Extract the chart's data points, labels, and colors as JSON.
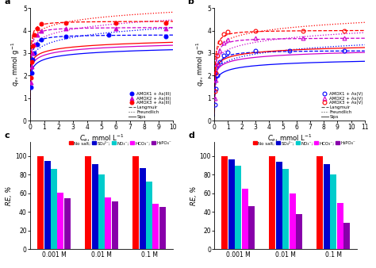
{
  "panel_a": {
    "title": "a",
    "xlim": [
      0,
      10
    ],
    "ylim": [
      0,
      5
    ],
    "xticks": [
      0,
      1,
      2,
      3,
      4,
      5,
      6,
      7,
      8,
      9,
      10
    ],
    "yticks": [
      0,
      1,
      2,
      3,
      4,
      5
    ],
    "data_points": {
      "AMOX1": {
        "x": [
          0.05,
          0.1,
          0.18,
          0.28,
          0.5,
          0.8,
          2.5,
          5.5,
          9.5
        ],
        "y": [
          1.5,
          2.1,
          2.7,
          3.0,
          3.4,
          3.6,
          3.75,
          3.82,
          3.75
        ],
        "color": "#0000ff",
        "marker": "o",
        "open": false
      },
      "AMOX2": {
        "x": [
          0.05,
          0.1,
          0.18,
          0.28,
          0.5,
          0.8,
          2.5,
          6.0,
          9.5
        ],
        "y": [
          1.7,
          2.4,
          3.0,
          3.4,
          3.8,
          4.0,
          4.1,
          4.1,
          4.1
        ],
        "color": "#cc00cc",
        "marker": "^",
        "open": false
      },
      "AMOX3": {
        "x": [
          0.05,
          0.1,
          0.18,
          0.28,
          0.5,
          0.8,
          2.5,
          6.0,
          9.5
        ],
        "y": [
          1.9,
          2.6,
          3.3,
          3.8,
          4.1,
          4.3,
          4.35,
          4.35,
          4.35
        ],
        "color": "#ff0000",
        "marker": "o",
        "open": false
      }
    },
    "sips": {
      "AMOX1": {
        "qmax": 3.82,
        "KS": 25.0,
        "n": 0.28
      },
      "AMOX2": {
        "qmax": 4.15,
        "KS": 30.0,
        "n": 0.25
      },
      "AMOX3": {
        "qmax": 4.42,
        "KS": 38.0,
        "n": 0.22
      }
    },
    "langmuir": {
      "AMOX1": {
        "qmax": 3.82,
        "KL": 20.0
      },
      "AMOX2": {
        "qmax": 4.15,
        "KL": 25.0
      },
      "AMOX3": {
        "qmax": 4.42,
        "KL": 32.0
      }
    },
    "freundlich": {
      "AMOX1": {
        "KF": 3.35,
        "n": 0.09
      },
      "AMOX2": {
        "KF": 3.72,
        "n": 0.08
      },
      "AMOX3": {
        "KF": 4.1,
        "n": 0.07
      }
    },
    "colors": [
      "#0000ff",
      "#cc00cc",
      "#ff0000"
    ],
    "legend_labels": [
      "AMOX1 + As(III)",
      "AMOX2 + As(III)",
      "AMOX3 + As(III)",
      "Langmuir",
      "Freundlich",
      "Sips"
    ]
  },
  "panel_b": {
    "title": "b",
    "xlim": [
      0,
      11
    ],
    "ylim": [
      0,
      5
    ],
    "xticks": [
      0,
      1,
      2,
      3,
      4,
      5,
      6,
      7,
      8,
      9,
      10,
      11
    ],
    "yticks": [
      0,
      1,
      2,
      3,
      4,
      5
    ],
    "data_points": {
      "AMOX1": {
        "x": [
          0.05,
          0.12,
          0.22,
          0.4,
          0.7,
          1.0,
          3.0,
          5.5,
          9.5
        ],
        "y": [
          0.7,
          1.4,
          2.0,
          2.6,
          2.9,
          3.05,
          3.1,
          3.1,
          3.1
        ],
        "color": "#0000ff",
        "marker": "o",
        "open": true
      },
      "AMOX2": {
        "x": [
          0.05,
          0.12,
          0.22,
          0.4,
          0.7,
          1.0,
          3.0,
          6.5,
          9.5
        ],
        "y": [
          1.0,
          1.8,
          2.5,
          3.1,
          3.45,
          3.6,
          3.65,
          3.65,
          3.65
        ],
        "color": "#cc00cc",
        "marker": "^",
        "open": true
      },
      "AMOX3": {
        "x": [
          0.05,
          0.12,
          0.22,
          0.4,
          0.7,
          1.0,
          3.0,
          6.5,
          9.5
        ],
        "y": [
          1.3,
          2.1,
          2.9,
          3.5,
          3.85,
          3.95,
          4.0,
          4.0,
          4.0
        ],
        "color": "#ff0000",
        "marker": "o",
        "open": true
      }
    },
    "sips": {
      "AMOX1": {
        "qmax": 3.12,
        "KS": 18.0,
        "n": 0.32
      },
      "AMOX2": {
        "qmax": 3.68,
        "KS": 22.0,
        "n": 0.28
      },
      "AMOX3": {
        "qmax": 4.02,
        "KS": 28.0,
        "n": 0.25
      }
    },
    "langmuir": {
      "AMOX1": {
        "qmax": 3.12,
        "KL": 12.0
      },
      "AMOX2": {
        "qmax": 3.68,
        "KL": 16.0
      },
      "AMOX3": {
        "qmax": 4.02,
        "KL": 20.0
      }
    },
    "freundlich": {
      "AMOX1": {
        "KF": 2.65,
        "n": 0.1
      },
      "AMOX2": {
        "KF": 3.15,
        "n": 0.09
      },
      "AMOX3": {
        "KF": 3.6,
        "n": 0.08
      }
    },
    "colors": [
      "#0000ff",
      "#cc00cc",
      "#ff0000"
    ],
    "legend_labels": [
      "AMOX1 + As(V)",
      "AMOX2 + As(V)",
      "AMOX3 + As(V)",
      "Langmuir",
      "Freundlich",
      "Sips"
    ]
  },
  "panel_c": {
    "title": "c",
    "ylabel": "RE, %",
    "categories": [
      "0.001 M",
      "0.01 M",
      "0.1 M"
    ],
    "bar_labels": [
      "No salt;",
      "SO₄²⁻;",
      "NO₃⁻;",
      "HCO₃⁻;",
      "H₂PO₄⁻"
    ],
    "bar_colors": [
      "#ff0000",
      "#0000cc",
      "#00cccc",
      "#ff00ff",
      "#8800aa"
    ],
    "values": [
      [
        100,
        95,
        86,
        61,
        55
      ],
      [
        100,
        91,
        80,
        56,
        51
      ],
      [
        100,
        87,
        73,
        49,
        45
      ]
    ],
    "ylim": [
      0,
      115
    ],
    "yticks": [
      0,
      20,
      40,
      60,
      80,
      100
    ]
  },
  "panel_d": {
    "title": "d",
    "ylabel": "RE, %",
    "categories": [
      "0.001 M",
      "0.01 M",
      "0.1 M"
    ],
    "bar_labels": [
      "No salt;",
      "SO₄²⁻;",
      "NO₃⁻;",
      "HCO₃⁻;",
      "H₂PO₄⁻"
    ],
    "bar_colors": [
      "#ff0000",
      "#0000cc",
      "#00cccc",
      "#ff00ff",
      "#8800aa"
    ],
    "values": [
      [
        100,
        96,
        90,
        65,
        46
      ],
      [
        100,
        94,
        86,
        60,
        38
      ],
      [
        100,
        91,
        80,
        50,
        28
      ]
    ],
    "ylim": [
      0,
      115
    ],
    "yticks": [
      0,
      20,
      40,
      60,
      80,
      100
    ]
  }
}
